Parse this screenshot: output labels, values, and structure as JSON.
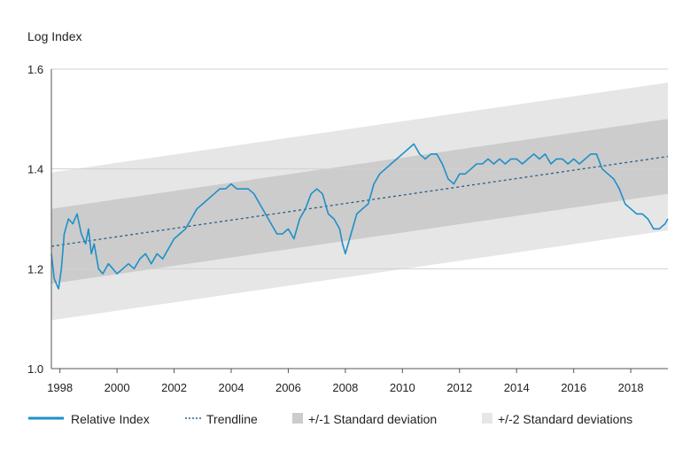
{
  "chart_data": {
    "type": "line",
    "ylabel": "Log Index",
    "xlabel": "",
    "ylim": [
      1.0,
      1.6
    ],
    "xlim": [
      1997.7,
      2019.3
    ],
    "yticks": [
      "1.0",
      "1.2",
      "1.4",
      "1.6"
    ],
    "xticks": [
      "1998",
      "2000",
      "2002",
      "2004",
      "2006",
      "2008",
      "2010",
      "2012",
      "2014",
      "2016",
      "2018"
    ],
    "grid": "horizontal",
    "legend_placement": "bottom",
    "legend": [
      "Relative Index",
      "Trendline",
      "+/-1 Standard deviation",
      "+/-2 Standard deviations"
    ],
    "colors": {
      "relative_index": "#1e90c8",
      "trendline": "#2b5f86",
      "band1": "#cccccc",
      "band2": "#e6e6e6",
      "grid": "#d0d0d0",
      "axis": "#555555"
    },
    "trendline": {
      "x": [
        1997.7,
        2019.3
      ],
      "y": [
        1.245,
        1.425
      ]
    },
    "band_1sd_offset": 0.075,
    "band_2sd_offset": 0.148,
    "series": [
      {
        "name": "Relative Index",
        "x": [
          1997.7,
          1997.8,
          1997.95,
          1998.05,
          1998.15,
          1998.3,
          1998.45,
          1998.6,
          1998.75,
          1998.9,
          1999.0,
          1999.1,
          1999.2,
          1999.35,
          1999.5,
          1999.7,
          1999.85,
          2000.0,
          2000.2,
          2000.4,
          2000.6,
          2000.8,
          2001.0,
          2001.2,
          2001.4,
          2001.6,
          2001.8,
          2002.0,
          2002.2,
          2002.4,
          2002.6,
          2002.8,
          2003.0,
          2003.2,
          2003.4,
          2003.6,
          2003.8,
          2004.0,
          2004.2,
          2004.4,
          2004.6,
          2004.8,
          2005.0,
          2005.2,
          2005.4,
          2005.6,
          2005.8,
          2006.0,
          2006.2,
          2006.4,
          2006.6,
          2006.8,
          2007.0,
          2007.2,
          2007.4,
          2007.6,
          2007.8,
          2007.9,
          2008.0,
          2008.2,
          2008.4,
          2008.6,
          2008.8,
          2009.0,
          2009.2,
          2009.4,
          2009.6,
          2009.8,
          2010.0,
          2010.2,
          2010.4,
          2010.6,
          2010.8,
          2011.0,
          2011.2,
          2011.4,
          2011.6,
          2011.8,
          2012.0,
          2012.2,
          2012.4,
          2012.6,
          2012.8,
          2013.0,
          2013.2,
          2013.4,
          2013.6,
          2013.8,
          2014.0,
          2014.2,
          2014.4,
          2014.6,
          2014.8,
          2015.0,
          2015.2,
          2015.4,
          2015.6,
          2015.8,
          2016.0,
          2016.2,
          2016.4,
          2016.6,
          2016.8,
          2017.0,
          2017.2,
          2017.4,
          2017.6,
          2017.8,
          2018.0,
          2018.2,
          2018.4,
          2018.6,
          2018.8,
          2019.0,
          2019.2,
          2019.3
        ],
        "y": [
          1.23,
          1.18,
          1.16,
          1.2,
          1.27,
          1.3,
          1.29,
          1.31,
          1.27,
          1.25,
          1.28,
          1.23,
          1.25,
          1.2,
          1.19,
          1.21,
          1.2,
          1.19,
          1.2,
          1.21,
          1.2,
          1.22,
          1.23,
          1.21,
          1.23,
          1.22,
          1.24,
          1.26,
          1.27,
          1.28,
          1.3,
          1.32,
          1.33,
          1.34,
          1.35,
          1.36,
          1.36,
          1.37,
          1.36,
          1.36,
          1.36,
          1.35,
          1.33,
          1.31,
          1.29,
          1.27,
          1.27,
          1.28,
          1.26,
          1.3,
          1.32,
          1.35,
          1.36,
          1.35,
          1.31,
          1.3,
          1.28,
          1.25,
          1.23,
          1.27,
          1.31,
          1.32,
          1.33,
          1.37,
          1.39,
          1.4,
          1.41,
          1.42,
          1.43,
          1.44,
          1.45,
          1.43,
          1.42,
          1.43,
          1.43,
          1.41,
          1.38,
          1.37,
          1.39,
          1.39,
          1.4,
          1.41,
          1.41,
          1.42,
          1.41,
          1.42,
          1.41,
          1.42,
          1.42,
          1.41,
          1.42,
          1.43,
          1.42,
          1.43,
          1.41,
          1.42,
          1.42,
          1.41,
          1.42,
          1.41,
          1.42,
          1.43,
          1.43,
          1.4,
          1.39,
          1.38,
          1.36,
          1.33,
          1.32,
          1.31,
          1.31,
          1.3,
          1.28,
          1.28,
          1.29,
          1.3
        ]
      }
    ]
  }
}
